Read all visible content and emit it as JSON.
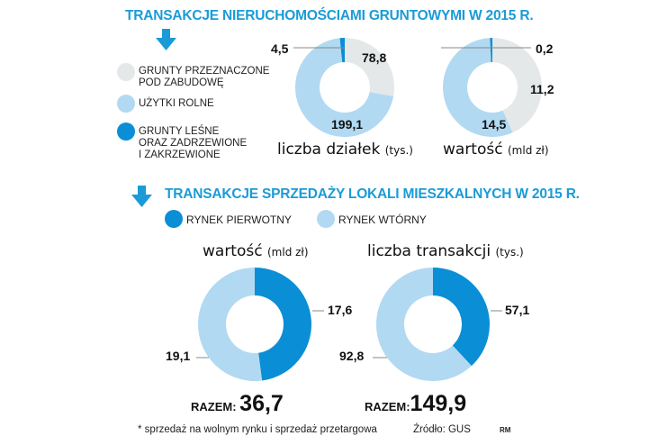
{
  "colors": {
    "accent": "#1a9bd7",
    "dark": "#0a8ed6",
    "light": "#b2d9f2",
    "gray": "#e4e8e8"
  },
  "section1": {
    "title": "TRANSAKCJE NIERUCHOMOŚCIAMI GRUNTOWYMI W 2015 R.",
    "legend": [
      {
        "label_lines": [
          "GRUNTY PRZEZNACZONE",
          "POD ZABUDOWĘ"
        ],
        "color": "#e4e8e8"
      },
      {
        "label_lines": [
          "UŻYTKI ROLNE"
        ],
        "color": "#b2d9f2"
      },
      {
        "label_lines": [
          "GRUNTY LEŚNE",
          "ORAZ ZADRZEWIONE",
          "I ZAKRZEWIONE"
        ],
        "color": "#0a8ed6"
      }
    ]
  },
  "section2": {
    "title": "TRANSAKCJE SPRZEDAŻY LOKALI MIESZKALNYCH W 2015 R.",
    "legend": [
      {
        "label": "RYNEK PIERWOTNY",
        "color": "#0a8ed6"
      },
      {
        "label": "RYNEK WTÓRNY",
        "color": "#b2d9f2"
      }
    ],
    "razem_label": "RAZEM:"
  },
  "chart_data": [
    {
      "type": "pie",
      "variant": "donut",
      "title": "liczba działek",
      "unit": "(tys.)",
      "categories": [
        "GRUNTY PRZEZNACZONE POD ZABUDOWĘ",
        "UŻYTKI ROLNE",
        "GRUNTY LEŚNE ORAZ ZADRZEWIONE I ZAKRZEWIONE"
      ],
      "values": [
        78.8,
        199.1,
        4.5
      ],
      "labels": [
        "78,8",
        "199,1",
        "4,5"
      ]
    },
    {
      "type": "pie",
      "variant": "donut",
      "title": "wartość",
      "unit": "(mld zł)",
      "categories": [
        "GRUNTY PRZEZNACZONE POD ZABUDOWĘ",
        "UŻYTKI ROLNE",
        "GRUNTY LEŚNE ORAZ ZADRZEWIONE I ZAKRZEWIONE"
      ],
      "values": [
        11.2,
        14.5,
        0.2
      ],
      "labels": [
        "11,2",
        "14,5",
        "0,2"
      ]
    },
    {
      "type": "pie",
      "variant": "donut",
      "title": "wartość",
      "unit": "(mld zł)",
      "categories": [
        "RYNEK PIERWOTNY",
        "RYNEK WTÓRNY"
      ],
      "values": [
        17.6,
        19.1
      ],
      "labels": [
        "17,6",
        "19,1"
      ],
      "total": "36,7"
    },
    {
      "type": "pie",
      "variant": "donut",
      "title": "liczba transakcji",
      "unit": "(tys.)",
      "categories": [
        "RYNEK PIERWOTNY",
        "RYNEK WTÓRNY"
      ],
      "values": [
        57.1,
        92.8
      ],
      "labels": [
        "57,1",
        "92,8"
      ],
      "total": "149,9"
    }
  ],
  "footer": {
    "note": "* sprzedaż na wolnym rynku i sprzedaż przetargowa",
    "source": "Źródło: GUS",
    "author": "RM"
  }
}
